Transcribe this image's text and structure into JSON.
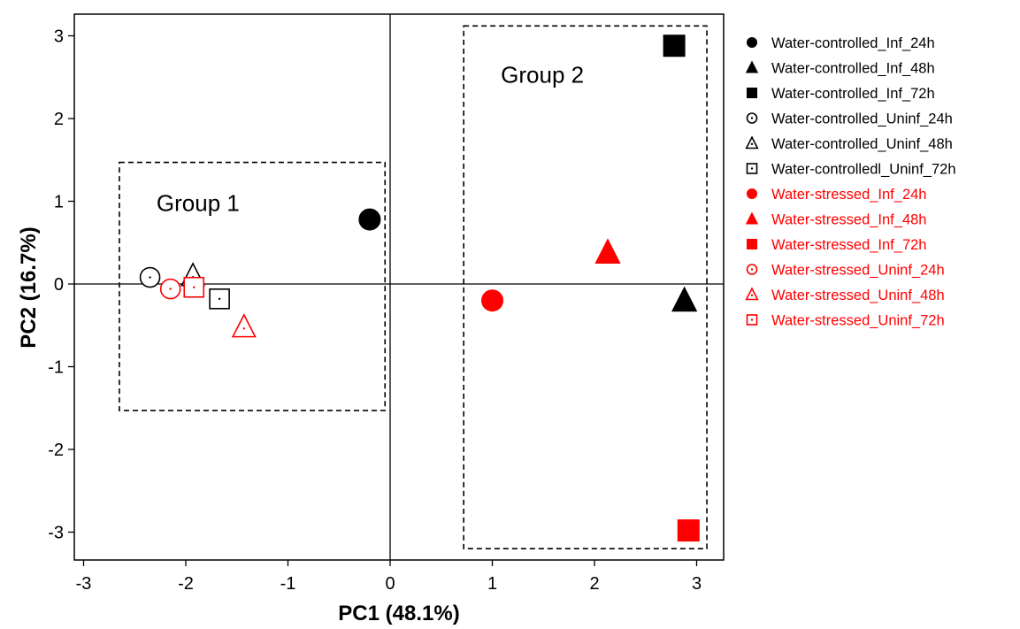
{
  "chart_data": {
    "type": "scatter",
    "xlabel": "PC1 (48.1%)",
    "ylabel": "PC2 (16.7%)",
    "xlim": [
      -3.1,
      3.25
    ],
    "ylim": [
      -3.33,
      3.25
    ],
    "x_ticks": [
      -3,
      -2,
      -1,
      0,
      1,
      2,
      3
    ],
    "y_ticks": [
      -3,
      -2,
      -1,
      0,
      1,
      2,
      3
    ],
    "zero_lines": true,
    "grid": false,
    "legend_position": "right",
    "groups": [
      {
        "label": "Group 1",
        "x_range": [
          -2.65,
          -0.05
        ],
        "y_range": [
          -1.53,
          1.47
        ]
      },
      {
        "label": "Group 2",
        "x_range": [
          0.72,
          3.1
        ],
        "y_range": [
          -3.2,
          3.12
        ]
      }
    ],
    "series": [
      {
        "name": "Water-controlled_Inf_24h",
        "color": "#000000",
        "marker": "circle",
        "filled": true,
        "x": -0.2,
        "y": 0.78
      },
      {
        "name": "Water-controlled_Inf_48h",
        "color": "#000000",
        "marker": "triangle",
        "filled": true,
        "x": 2.88,
        "y": -0.2
      },
      {
        "name": "Water-controlled_Inf_72h",
        "color": "#000000",
        "marker": "square",
        "filled": true,
        "x": 2.78,
        "y": 2.88
      },
      {
        "name": "Water-controlled_Uninf_24h",
        "color": "#000000",
        "marker": "circle",
        "filled": false,
        "x": -2.35,
        "y": 0.08
      },
      {
        "name": "Water-controlled_Uninf_48h",
        "color": "#000000",
        "marker": "triangle",
        "filled": false,
        "x": -1.93,
        "y": 0.1
      },
      {
        "name": "Water-controlledl_Uninf_72h",
        "color": "#000000",
        "marker": "square",
        "filled": false,
        "x": -1.67,
        "y": -0.18
      },
      {
        "name": "Water-stressed_Inf_24h",
        "color": "#ff0000",
        "marker": "circle",
        "filled": true,
        "x": 1.0,
        "y": -0.2
      },
      {
        "name": "Water-stressed_Inf_48h",
        "color": "#ff0000",
        "marker": "triangle",
        "filled": true,
        "x": 2.13,
        "y": 0.38
      },
      {
        "name": "Water-stressed_Inf_72h",
        "color": "#ff0000",
        "marker": "square",
        "filled": true,
        "x": 2.92,
        "y": -2.98
      },
      {
        "name": "Water-stressed_Uninf_24h",
        "color": "#ff0000",
        "marker": "circle",
        "filled": false,
        "x": -2.15,
        "y": -0.06
      },
      {
        "name": "Water-stressed_Uninf_48h",
        "color": "#ff0000",
        "marker": "triangle",
        "filled": false,
        "x": -1.43,
        "y": -0.52
      },
      {
        "name": "Water-stressed_Uninf_72h",
        "color": "#ff0000",
        "marker": "square",
        "filled": false,
        "x": -1.92,
        "y": -0.04
      }
    ]
  }
}
